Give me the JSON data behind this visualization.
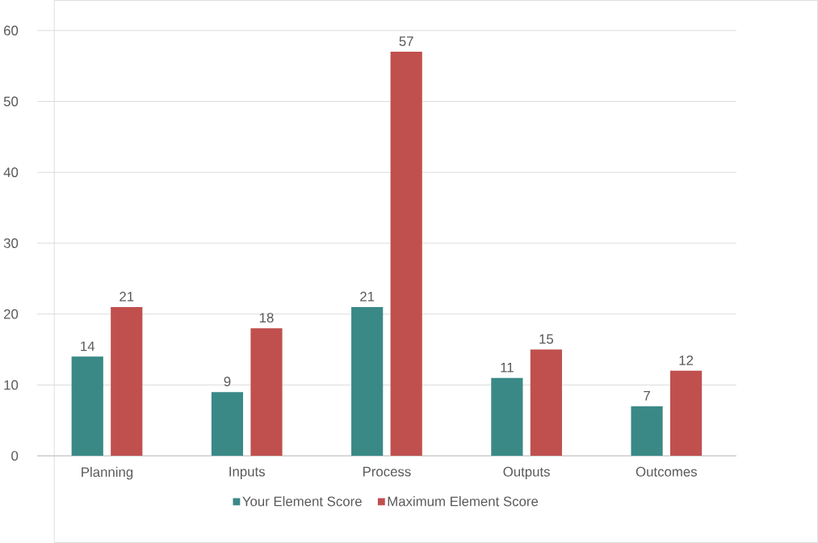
{
  "chart_data": {
    "type": "bar",
    "categories": [
      "Planning",
      "Inputs",
      "Process",
      "Outputs",
      "Outcomes"
    ],
    "series": [
      {
        "name": "Your Element Score",
        "color": "#3a8987",
        "values": [
          14,
          9,
          21,
          11,
          7
        ]
      },
      {
        "name": "Maximum Element Score",
        "color": "#c0504d",
        "values": [
          21,
          18,
          57,
          15,
          12
        ]
      }
    ],
    "ylim": [
      0,
      60
    ],
    "yticks": [
      0,
      10,
      20,
      30,
      40,
      50,
      60
    ],
    "grid": "y",
    "legend": "bottom",
    "data_labels": true
  }
}
